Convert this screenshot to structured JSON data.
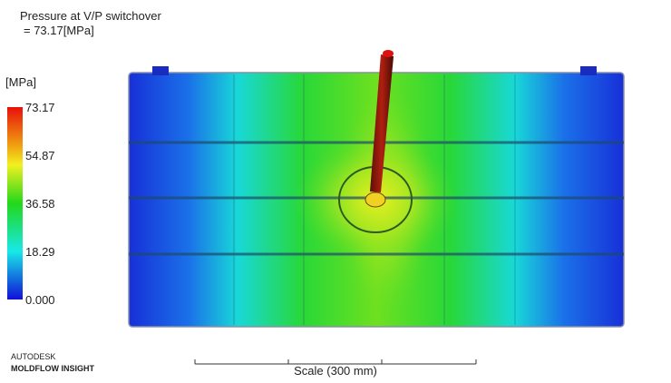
{
  "header": {
    "title": "Pressure at V/P switchover",
    "value_line": "= 73.17[MPa]"
  },
  "legend": {
    "unit": "[MPa]",
    "labels": [
      "73.17",
      "54.87",
      "36.58",
      "18.29",
      "0.000"
    ]
  },
  "logo": {
    "company": "AUTODESK",
    "product": "MOLDFLOW INSIGHT"
  },
  "scale": {
    "label": "Scale (300 mm)"
  }
}
